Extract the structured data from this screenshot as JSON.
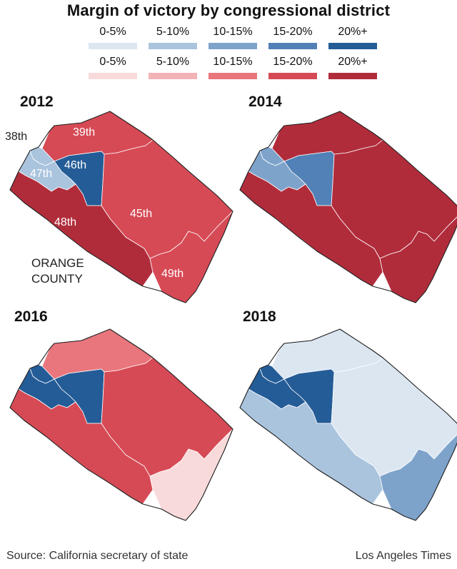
{
  "title": "Margin of victory by congressional district",
  "legend": {
    "blue": [
      {
        "label": "0-5%",
        "color": "#dbe6f1"
      },
      {
        "label": "5-10%",
        "color": "#aac4de"
      },
      {
        "label": "10-15%",
        "color": "#7ea3cb"
      },
      {
        "label": "15-20%",
        "color": "#5181b6"
      },
      {
        "label": "20%+",
        "color": "#245c97"
      }
    ],
    "red": [
      {
        "label": "0-5%",
        "color": "#f9dada"
      },
      {
        "label": "5-10%",
        "color": "#f3b2b6"
      },
      {
        "label": "10-15%",
        "color": "#e8767c"
      },
      {
        "label": "15-20%",
        "color": "#d64a55"
      },
      {
        "label": "20%+",
        "color": "#b12c3b"
      }
    ]
  },
  "panels": [
    {
      "year": "2012",
      "colors": {
        "d38": "#aac4de",
        "d39": "#d64a55",
        "d46": "#245c97",
        "d47": "#aac4de",
        "d48": "#b12c3b",
        "d45": "#d64a55",
        "d49": "#d64a55"
      }
    },
    {
      "year": "2014",
      "colors": {
        "d38": "#7ea3cb",
        "d39": "#b12c3b",
        "d46": "#5181b6",
        "d47": "#7ea3cb",
        "d48": "#b12c3b",
        "d45": "#b12c3b",
        "d49": "#b12c3b"
      }
    },
    {
      "year": "2016",
      "colors": {
        "d38": "#245c97",
        "d39": "#e8767c",
        "d46": "#245c97",
        "d47": "#245c97",
        "d48": "#d64a55",
        "d45": "#d64a55",
        "d49": "#f9dada"
      }
    },
    {
      "year": "2018",
      "colors": {
        "d38": "#245c97",
        "d39": "#dbe6f1",
        "d46": "#245c97",
        "d47": "#245c97",
        "d48": "#aac4de",
        "d45": "#dbe6f1",
        "d49": "#7ea3cb"
      }
    }
  ],
  "district_labels": {
    "d38": "38th",
    "d39": "39th",
    "d46": "46th",
    "d47": "47th",
    "d48": "48th",
    "d45": "45th",
    "d49": "49th"
  },
  "county_label": [
    "ORANGE",
    "COUNTY"
  ],
  "footer": {
    "source": "Source: California secretary of state",
    "credit": "Los Angeles Times"
  }
}
